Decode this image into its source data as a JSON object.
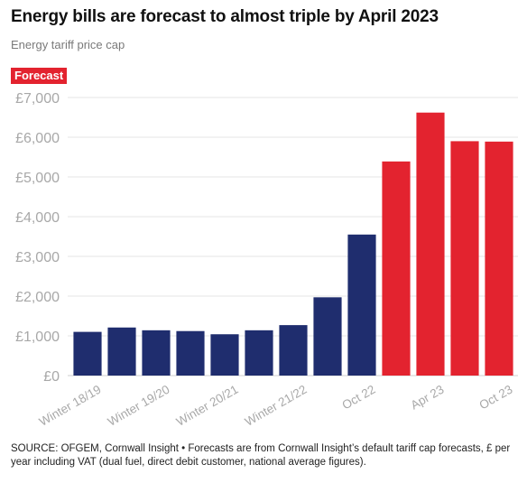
{
  "title": "Energy bills are forecast to almost triple by April 2023",
  "subtitle": "Energy tariff price cap",
  "badge": "Forecast",
  "source": "SOURCE: OFGEM, Cornwall Insight • Forecasts are from Cornwall Insight’s default tariff cap forecasts, £ per year including VAT (dual fuel, direct debit customer, national average figures).",
  "colors": {
    "actual": "#1f2d6e",
    "forecast": "#e3232f",
    "grid": "#e6e6e6",
    "tick": "#a8a8a8"
  },
  "chart_data": {
    "type": "bar",
    "categories": [
      "Winter 18/19",
      "",
      "Winter 19/20",
      "",
      "Winter 20/21",
      "",
      "Winter 21/22",
      "",
      "Oct 22",
      "",
      "Apr 23",
      "",
      "Oct 23"
    ],
    "values": [
      1100,
      1210,
      1140,
      1120,
      1040,
      1140,
      1270,
      1970,
      3550,
      5390,
      6620,
      5900,
      5890
    ],
    "forecast": [
      false,
      false,
      false,
      false,
      false,
      false,
      false,
      false,
      false,
      true,
      true,
      true,
      true
    ],
    "yticks": [
      "£0",
      "£1,000",
      "£2,000",
      "£3,000",
      "£4,000",
      "£5,000",
      "£6,000",
      "£7,000"
    ],
    "ylim": [
      0,
      7000
    ],
    "grid": true
  }
}
